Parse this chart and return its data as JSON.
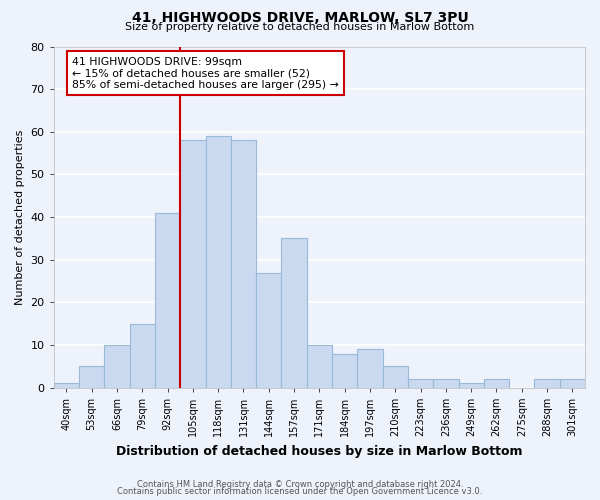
{
  "title": "41, HIGHWOODS DRIVE, MARLOW, SL7 3PU",
  "subtitle": "Size of property relative to detached houses in Marlow Bottom",
  "xlabel": "Distribution of detached houses by size in Marlow Bottom",
  "ylabel": "Number of detached properties",
  "bar_labels": [
    "40sqm",
    "53sqm",
    "66sqm",
    "79sqm",
    "92sqm",
    "105sqm",
    "118sqm",
    "131sqm",
    "144sqm",
    "157sqm",
    "171sqm",
    "184sqm",
    "197sqm",
    "210sqm",
    "223sqm",
    "236sqm",
    "249sqm",
    "262sqm",
    "275sqm",
    "288sqm",
    "301sqm"
  ],
  "bar_values": [
    1,
    5,
    10,
    15,
    41,
    58,
    59,
    58,
    27,
    35,
    10,
    8,
    9,
    5,
    2,
    2,
    1,
    2,
    0,
    2,
    2
  ],
  "bar_color": "#c9d9f0",
  "bar_edgecolor": "#9ab8d8",
  "background_color": "#eef2fb",
  "grid_color": "#ffffff",
  "vline_x": 4.5,
  "vline_color": "#cc0000",
  "annotation_text": "41 HIGHWOODS DRIVE: 99sqm\n← 15% of detached houses are smaller (52)\n85% of semi-detached houses are larger (295) →",
  "annotation_box_edgecolor": "#cc0000",
  "ylim": [
    0,
    80
  ],
  "yticks": [
    0,
    10,
    20,
    30,
    40,
    50,
    60,
    70,
    80
  ],
  "footer1": "Contains HM Land Registry data © Crown copyright and database right 2024.",
  "footer2": "Contains public sector information licensed under the Open Government Licence v3.0."
}
